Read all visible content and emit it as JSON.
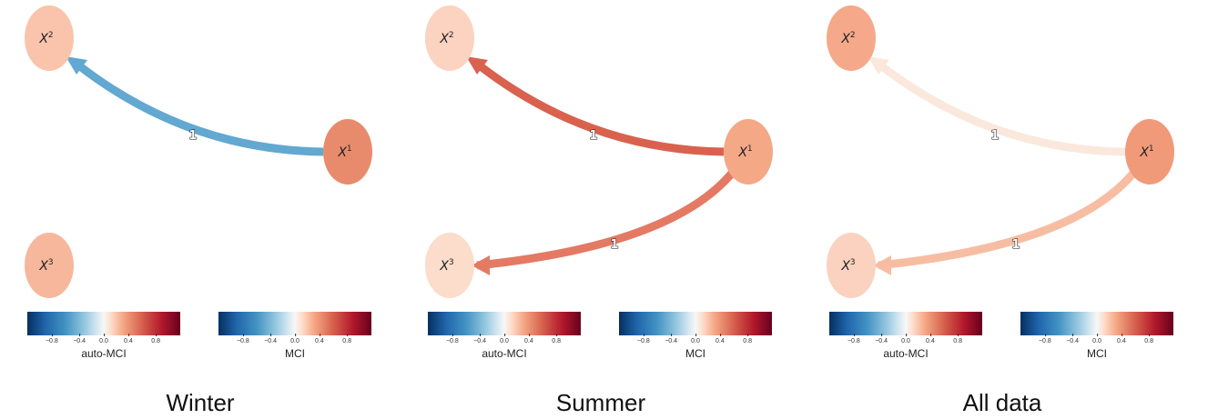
{
  "panels": [
    {
      "caption": "Winter",
      "nodes": [
        {
          "name": "X",
          "sup": "1",
          "color": "#e88b6c"
        },
        {
          "name": "X",
          "sup": "2",
          "color": "#f9c4ab"
        },
        {
          "name": "X",
          "sup": "3",
          "color": "#f6b79c"
        }
      ],
      "edges": [
        {
          "from": "X1",
          "to": "X2",
          "lag": "1",
          "color": "#62a8d1"
        }
      ]
    },
    {
      "caption": "Summer",
      "nodes": [
        {
          "name": "X",
          "sup": "1",
          "color": "#f4a886"
        },
        {
          "name": "X",
          "sup": "2",
          "color": "#fbd3c0"
        },
        {
          "name": "X",
          "sup": "3",
          "color": "#fcdcca"
        }
      ],
      "edges": [
        {
          "from": "X1",
          "to": "X2",
          "lag": "1",
          "color": "#d9624f"
        },
        {
          "from": "X1",
          "to": "X3",
          "lag": "1",
          "color": "#e47a64"
        }
      ]
    },
    {
      "caption": "All data",
      "nodes": [
        {
          "name": "X",
          "sup": "1",
          "color": "#f09a7a"
        },
        {
          "name": "X",
          "sup": "2",
          "color": "#f5a98a"
        },
        {
          "name": "X",
          "sup": "3",
          "color": "#fad2bf"
        }
      ],
      "edges": [
        {
          "from": "X1",
          "to": "X2",
          "lag": "1",
          "color": "#fbe8dd"
        },
        {
          "from": "X1",
          "to": "X3",
          "lag": "1",
          "color": "#f7bda2"
        }
      ]
    }
  ],
  "colorbars": {
    "node_label": "auto-MCI",
    "edge_label": "MCI",
    "ticks": [
      "−0.8",
      "−0.4",
      "0.0",
      "0.4",
      "0.8"
    ],
    "range": [
      -1,
      1
    ],
    "colors": [
      "#053061",
      "#2166ac",
      "#4393c3",
      "#92c5de",
      "#d1e5f0",
      "#f7f7f7",
      "#fddbc7",
      "#f4a582",
      "#d6604d",
      "#b2182b",
      "#67001f"
    ]
  }
}
